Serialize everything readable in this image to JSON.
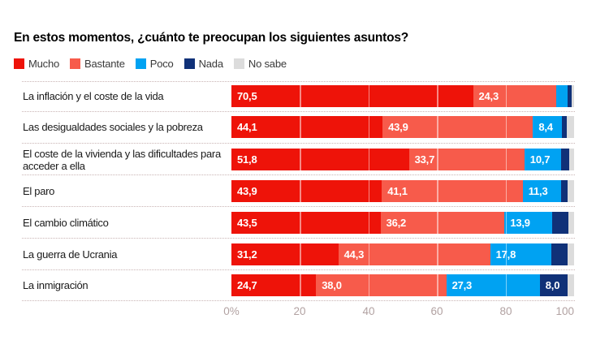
{
  "title": "En estos momentos, ¿cuánto te preocupan los siguientes asuntos?",
  "legend": [
    {
      "label": "Mucho",
      "color": "#ee1309"
    },
    {
      "label": "Bastante",
      "color": "#f75b4b"
    },
    {
      "label": "Poco",
      "color": "#00a2f2"
    },
    {
      "label": "Nada",
      "color": "#103178"
    },
    {
      "label": "No sabe",
      "color": "#dcdcdc"
    }
  ],
  "chart_data": {
    "type": "bar",
    "stacked": true,
    "orientation": "horizontal",
    "title": "En estos momentos, ¿cuánto te preocupan los siguientes asuntos?",
    "categories": [
      "La inflación y el coste de la vida",
      "Las desigualdades sociales y la pobreza",
      "El coste de la vivienda y las dificultades para acceder a ella",
      "El paro",
      "El cambio climático",
      "La guerra de Ucrania",
      "La inmigración"
    ],
    "series": [
      {
        "name": "Mucho",
        "color": "#ee1309",
        "values": [
          70.5,
          44.1,
          51.8,
          43.9,
          43.5,
          31.2,
          24.7
        ]
      },
      {
        "name": "Bastante",
        "color": "#f75b4b",
        "values": [
          24.3,
          43.9,
          33.7,
          41.1,
          36.2,
          44.3,
          38.0
        ]
      },
      {
        "name": "Poco",
        "color": "#00a2f2",
        "values": [
          3.2,
          8.4,
          10.7,
          11.3,
          13.9,
          17.8,
          27.3
        ]
      },
      {
        "name": "Nada",
        "color": "#103178",
        "values": [
          1.2,
          1.4,
          2.4,
          1.9,
          4.8,
          4.9,
          8.0
        ]
      },
      {
        "name": "No sabe",
        "color": "#dcdcdc",
        "values": [
          0.8,
          2.2,
          1.4,
          1.8,
          1.6,
          1.8,
          2.0
        ]
      }
    ],
    "value_label_rule": "labels shown for segments >= 8, decimal comma format",
    "xlim": [
      0,
      100
    ],
    "ticks": [
      "0%",
      "20",
      "40",
      "60",
      "80",
      "100"
    ],
    "gridlines": [
      20,
      40,
      60,
      80
    ],
    "legend_position": "top",
    "grid": "vertical-white-overlay"
  }
}
